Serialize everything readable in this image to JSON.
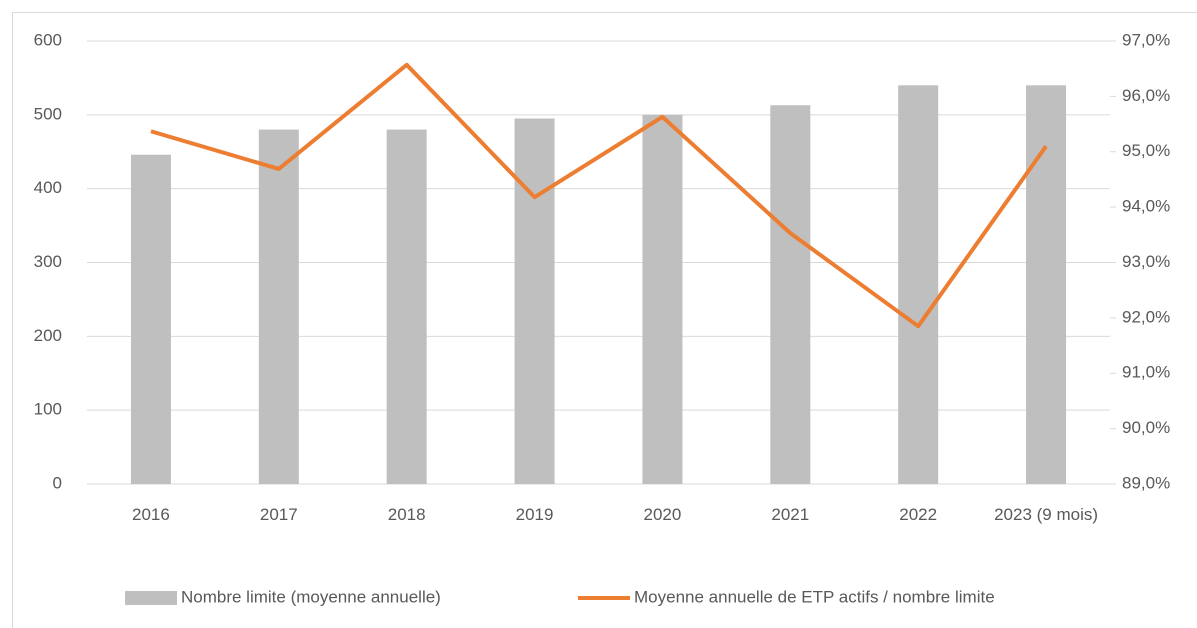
{
  "chart_data": {
    "type": "bar_line",
    "categories": [
      "2016",
      "2017",
      "2018",
      "2019",
      "2020",
      "2021",
      "2022",
      "2023 (9 mois)"
    ],
    "series": [
      {
        "name": "Nombre limite (moyenne annuelle)",
        "type": "bar",
        "color": "#bfbfbf",
        "values": [
          446,
          480,
          480,
          495,
          500,
          513,
          540,
          540
        ]
      },
      {
        "name": "Moyenne annuelle de ETP actifs / nombre limite",
        "type": "line",
        "axis": "y2",
        "color": "#ed7d31",
        "values": [
          95.37,
          94.69,
          96.57,
          94.18,
          95.63,
          93.53,
          91.85,
          95.1
        ]
      }
    ],
    "ylim": [
      0,
      600
    ],
    "yticks": [
      0,
      100,
      200,
      300,
      400,
      500,
      600
    ],
    "y2lim": [
      89,
      97
    ],
    "y2ticks": [
      {
        "value": 89,
        "label": "89,0%"
      },
      {
        "value": 90,
        "label": "90,0%"
      },
      {
        "value": 91,
        "label": "91,0%"
      },
      {
        "value": 92,
        "label": "92,0%"
      },
      {
        "value": 93,
        "label": "93,0%"
      },
      {
        "value": 94,
        "label": "94,0%"
      },
      {
        "value": 95,
        "label": "95,0%"
      },
      {
        "value": 96,
        "label": "96,0%"
      },
      {
        "value": 97,
        "label": "97,0%"
      }
    ],
    "grid": true,
    "legend": "bottom"
  }
}
